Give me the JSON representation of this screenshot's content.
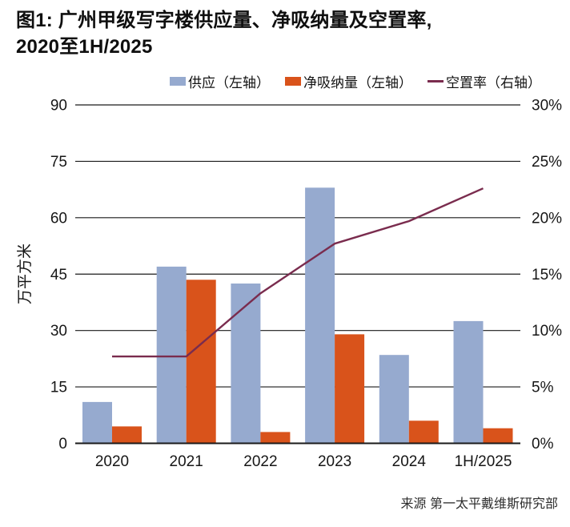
{
  "figure": {
    "title_line1": "图1: 广州甲级写字楼供应量、净吸纳量及空置率,",
    "title_line2": "2020至1H/2025",
    "source": "来源 第一太平戴维斯研究部"
  },
  "legend": {
    "items": [
      {
        "label": "供应（左轴）",
        "swatch": "square",
        "color": "#96aacf"
      },
      {
        "label": "净吸纳量（左轴）",
        "swatch": "square",
        "color": "#d9531b"
      },
      {
        "label": "空置率（右轴）",
        "swatch": "line",
        "color": "#7a2c4e"
      }
    ]
  },
  "colors": {
    "supply_bar": "#96aacf",
    "absorption_bar": "#d9531b",
    "vacancy_line": "#7a2c4e",
    "gridline": "#1a1a1a",
    "text": "#161616"
  },
  "chart_data": {
    "type": "bar",
    "subtype": "grouped-bar-with-line",
    "title": "图1: 广州甲级写字楼供应量、净吸纳量及空置率, 2020至1H/2025",
    "categories": [
      "2020",
      "2021",
      "2022",
      "2023",
      "2024",
      "1H/2025"
    ],
    "series": [
      {
        "name": "供应（左轴）",
        "kind": "bar",
        "axis": "left",
        "color": "#96aacf",
        "values": [
          11,
          47,
          42.5,
          68,
          23.5,
          32.5
        ]
      },
      {
        "name": "净吸纳量（左轴）",
        "kind": "bar",
        "axis": "left",
        "color": "#d9531b",
        "values": [
          4.5,
          43.5,
          3,
          29,
          6,
          4
        ]
      },
      {
        "name": "空置率（右轴）",
        "kind": "line",
        "axis": "right",
        "color": "#7a2c4e",
        "values": [
          7.7,
          7.7,
          13.3,
          17.7,
          19.7,
          22.6
        ]
      }
    ],
    "left_axis": {
      "title": "万平方米",
      "ticks": [
        0,
        15,
        30,
        45,
        60,
        75,
        90
      ],
      "min": 0,
      "max": 90
    },
    "right_axis": {
      "tick_labels": [
        "0%",
        "5%",
        "10%",
        "15%",
        "20%",
        "25%",
        "30%"
      ],
      "min": 0,
      "max": 30,
      "unit": "%"
    },
    "grid": true,
    "legend_position": "top-right",
    "source": "来源 第一太平戴维斯研究部"
  }
}
